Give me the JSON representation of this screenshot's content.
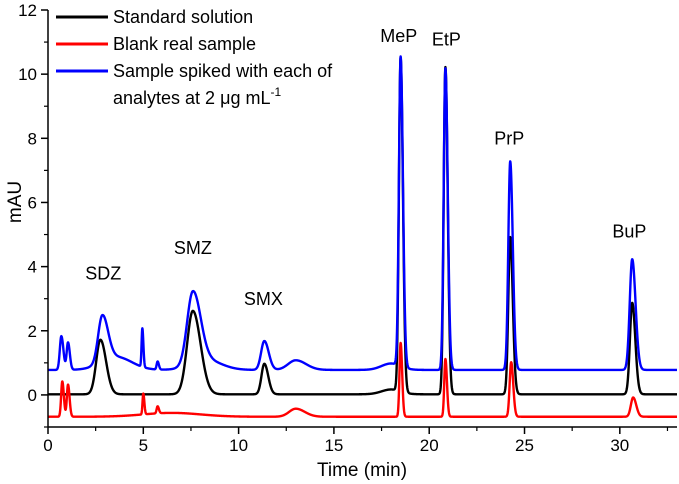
{
  "chart_data": {
    "type": "line",
    "xlabel": "Time (min)",
    "ylabel": "mAU",
    "xlim": [
      0,
      33
    ],
    "ylim": [
      -1,
      12
    ],
    "x_ticks": [
      0,
      5,
      10,
      15,
      20,
      25,
      30
    ],
    "y_ticks": [
      0,
      2,
      4,
      6,
      8,
      10,
      12
    ],
    "legend": {
      "placement": "top-left",
      "entries": [
        {
          "label": "Standard solution",
          "color": "#000000"
        },
        {
          "label": "Blank real sample",
          "color": "#ff0000"
        },
        {
          "label_line1": "Sample spiked with each of",
          "label_line2_prefix": "analytes at 2 ",
          "mu": "μ",
          "label_line2_unit": "g mL",
          "sup": "-1",
          "color": "#0000ff"
        }
      ]
    },
    "annotations": [
      {
        "text": "SDZ",
        "x": 2.9,
        "y": 3.6
      },
      {
        "text": "SMZ",
        "x": 7.6,
        "y": 4.4
      },
      {
        "text": "SMX",
        "x": 11.3,
        "y": 2.8
      },
      {
        "text": "MeP",
        "x": 18.4,
        "y": 11.0
      },
      {
        "text": "EtP",
        "x": 20.9,
        "y": 10.9
      },
      {
        "text": "PrP",
        "x": 24.2,
        "y": 7.8
      },
      {
        "text": "BuP",
        "x": 30.5,
        "y": 4.9
      }
    ],
    "series": [
      {
        "name": "Standard solution",
        "color": "#000000",
        "baseline": 0.02,
        "peaks": [
          {
            "t": 2.75,
            "h": 1.7,
            "w": 0.22
          },
          {
            "t": 7.6,
            "h": 2.6,
            "w": 0.3
          },
          {
            "t": 11.35,
            "h": 0.95,
            "w": 0.15
          },
          {
            "t": 18.5,
            "h": 10.4,
            "w": 0.09
          },
          {
            "t": 20.85,
            "h": 10.2,
            "w": 0.09
          },
          {
            "t": 24.25,
            "h": 4.9,
            "w": 0.1
          },
          {
            "t": 30.65,
            "h": 2.85,
            "w": 0.12
          }
        ],
        "humps": [
          {
            "t": 18.0,
            "h": 0.15,
            "w": 0.5
          }
        ]
      },
      {
        "name": "Blank real sample",
        "color": "#ff0000",
        "baseline": -0.68,
        "peaks": [
          {
            "t": 0.75,
            "h": 1.1,
            "w": 0.06
          },
          {
            "t": 1.05,
            "h": 1.0,
            "w": 0.06
          },
          {
            "t": 5.0,
            "h": 0.65,
            "w": 0.04
          },
          {
            "t": 5.75,
            "h": 0.22,
            "w": 0.05
          },
          {
            "t": 13.0,
            "h": 0.25,
            "w": 0.35
          },
          {
            "t": 18.5,
            "h": 2.3,
            "w": 0.06
          },
          {
            "t": 20.85,
            "h": 1.8,
            "w": 0.06
          },
          {
            "t": 24.3,
            "h": 1.7,
            "w": 0.08
          },
          {
            "t": 30.7,
            "h": 0.6,
            "w": 0.12
          }
        ],
        "humps": [
          {
            "t": 6.5,
            "h": 0.12,
            "w": 1.5
          }
        ]
      },
      {
        "name": "Sample spiked with each of analytes at 2 μg mL-1",
        "color": "#0000ff",
        "baseline": 0.78,
        "peaks": [
          {
            "t": 0.7,
            "h": 1.05,
            "w": 0.08
          },
          {
            "t": 1.05,
            "h": 0.85,
            "w": 0.07
          },
          {
            "t": 2.85,
            "h": 1.45,
            "w": 0.22
          },
          {
            "t": 4.95,
            "h": 1.2,
            "w": 0.04
          },
          {
            "t": 5.75,
            "h": 0.25,
            "w": 0.05
          },
          {
            "t": 7.6,
            "h": 2.25,
            "w": 0.3
          },
          {
            "t": 11.35,
            "h": 0.9,
            "w": 0.17
          },
          {
            "t": 13.0,
            "h": 0.3,
            "w": 0.4
          },
          {
            "t": 18.5,
            "h": 9.65,
            "w": 0.09
          },
          {
            "t": 20.85,
            "h": 9.4,
            "w": 0.09
          },
          {
            "t": 24.25,
            "h": 6.5,
            "w": 0.1
          },
          {
            "t": 30.65,
            "h": 3.45,
            "w": 0.13
          }
        ],
        "humps": [
          {
            "t": 3.6,
            "h": 0.4,
            "w": 0.8
          },
          {
            "t": 8.3,
            "h": 0.3,
            "w": 0.8
          },
          {
            "t": 18.0,
            "h": 0.2,
            "w": 0.5
          }
        ]
      }
    ]
  }
}
